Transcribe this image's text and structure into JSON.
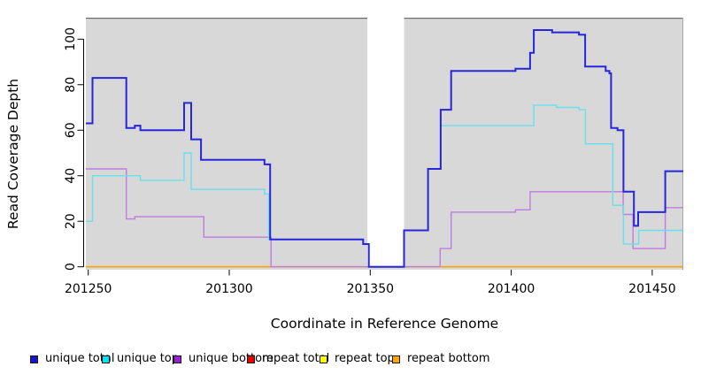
{
  "chart_data": {
    "type": "line",
    "subtype": "step-coverage-plot",
    "xlabel": "Coordinate in Reference Genome",
    "ylabel": "Read Coverage Depth",
    "x_ticks": [
      201250,
      201300,
      201350,
      201400,
      201450
    ],
    "y_ticks": [
      0,
      20,
      40,
      60,
      80,
      100
    ],
    "x_range": [
      201249,
      201461.5
    ],
    "y_range": [
      0,
      109
    ],
    "plot_background": "#d8d8d8",
    "gap_band": {
      "start": 201349,
      "end": 201362,
      "color": "#ffffff"
    },
    "grid": false,
    "legend_position": "bottom",
    "series": [
      {
        "name": "repeat total",
        "color": "#dd0000",
        "width": 1.2,
        "points": [
          [
            201249,
            0
          ]
        ]
      },
      {
        "name": "repeat top",
        "color": "#ffff00",
        "width": 1.2,
        "points": [
          [
            201249,
            0
          ]
        ]
      },
      {
        "name": "repeat bottom",
        "color": "#ffa500",
        "width": 1.6,
        "points": [
          [
            201249,
            0
          ]
        ]
      },
      {
        "name": "unique bottom",
        "color": "#c07be0",
        "width": 1.4,
        "points": [
          [
            201249,
            43
          ],
          [
            201263.5,
            21
          ],
          [
            201266.5,
            22
          ],
          [
            201291,
            13
          ],
          [
            201314.8,
            0
          ],
          [
            201374.8,
            8
          ],
          [
            201378.7,
            24
          ],
          [
            201401.5,
            25
          ],
          [
            201406.7,
            33
          ],
          [
            201439.7,
            23
          ],
          [
            201443.2,
            8
          ],
          [
            201454.6,
            26
          ]
        ]
      },
      {
        "name": "unique top",
        "color": "#66e0ec",
        "width": 1.4,
        "points": [
          [
            201249,
            20
          ],
          [
            201251.5,
            40
          ],
          [
            201268.5,
            38
          ],
          [
            201284,
            50
          ],
          [
            201286.5,
            34
          ],
          [
            201312.5,
            32
          ],
          [
            201314,
            12
          ],
          [
            201347.5,
            10
          ],
          [
            201349.5,
            0
          ],
          [
            201362,
            16
          ],
          [
            201370.5,
            43
          ],
          [
            201375,
            62
          ],
          [
            201408,
            71
          ],
          [
            201416,
            70
          ],
          [
            201424,
            69
          ],
          [
            201426.3,
            54
          ],
          [
            201436,
            27
          ],
          [
            201439.8,
            10
          ],
          [
            201445.2,
            16
          ]
        ]
      },
      {
        "name": "unique total",
        "color": "#2626dc",
        "width": 2,
        "points": [
          [
            201249,
            63
          ],
          [
            201251.5,
            83
          ],
          [
            201263.5,
            61
          ],
          [
            201266.5,
            62
          ],
          [
            201268.5,
            60
          ],
          [
            201284,
            72
          ],
          [
            201286.5,
            56
          ],
          [
            201290,
            47
          ],
          [
            201312.5,
            45
          ],
          [
            201314.5,
            12
          ],
          [
            201347.5,
            10
          ],
          [
            201349.5,
            0
          ],
          [
            201362,
            16
          ],
          [
            201370.5,
            43
          ],
          [
            201375,
            69
          ],
          [
            201378.7,
            86
          ],
          [
            201401.5,
            87
          ],
          [
            201406.7,
            94
          ],
          [
            201408,
            104
          ],
          [
            201414.5,
            103
          ],
          [
            201424,
            102
          ],
          [
            201426.2,
            88
          ],
          [
            201433.5,
            86
          ],
          [
            201434.8,
            85
          ],
          [
            201435.4,
            61
          ],
          [
            201437.7,
            60
          ],
          [
            201439.8,
            33
          ],
          [
            201443.5,
            18
          ],
          [
            201445,
            24
          ],
          [
            201454.6,
            42
          ]
        ]
      }
    ],
    "legend": [
      {
        "label": "unique total",
        "fill": "#1515ce"
      },
      {
        "label": "unique top",
        "fill": "#00e5ee"
      },
      {
        "label": "unique bottom",
        "fill": "#9b1fd9"
      },
      {
        "label": "repeat total",
        "fill": "#e60000"
      },
      {
        "label": "repeat top",
        "fill": "#ffff00"
      },
      {
        "label": "repeat bottom",
        "fill": "#ffa500"
      }
    ]
  }
}
